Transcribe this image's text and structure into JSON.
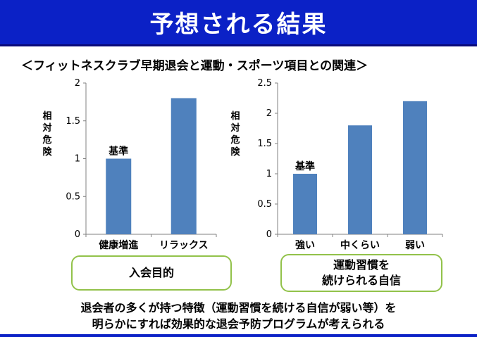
{
  "slide": {
    "title": "予想される結果",
    "subtitle": "＜フィットネスクラブ早期退会と運動・スポーツ項目との関連＞",
    "footer_line1": "退会者の多くが持つ特徴（運動習慣を続ける自信が弱い等）を",
    "footer_line2": "明らかにすれば効果的な退会予防プログラムが考えられる"
  },
  "captions": {
    "left": "入会目的",
    "right_line1": "運動習慣を",
    "right_line2": "続けられる自信"
  },
  "colors": {
    "bar": "#4f81bd",
    "title_bg": "#0b21c6",
    "caption_border": "#92c24a"
  },
  "chart_data": [
    {
      "type": "bar",
      "categories": [
        "健康増進",
        "リラックス"
      ],
      "values": [
        1,
        1.8
      ],
      "ylabel": "相対危険",
      "ylim": [
        0,
        2
      ],
      "yticks": [
        "0",
        "0.5",
        "1",
        "1.5",
        "2"
      ],
      "annotation": {
        "category": "健康増進",
        "text": "基準"
      },
      "grid": false
    },
    {
      "type": "bar",
      "categories": [
        "強い",
        "中くらい",
        "弱い"
      ],
      "values": [
        1,
        1.8,
        2.2
      ],
      "ylabel": "相対危険",
      "ylim": [
        0,
        2.5
      ],
      "yticks": [
        "0",
        "0.5",
        "1",
        "1.5",
        "2",
        "2.5"
      ],
      "annotation": {
        "category": "強い",
        "text": "基準"
      },
      "grid": false
    }
  ]
}
